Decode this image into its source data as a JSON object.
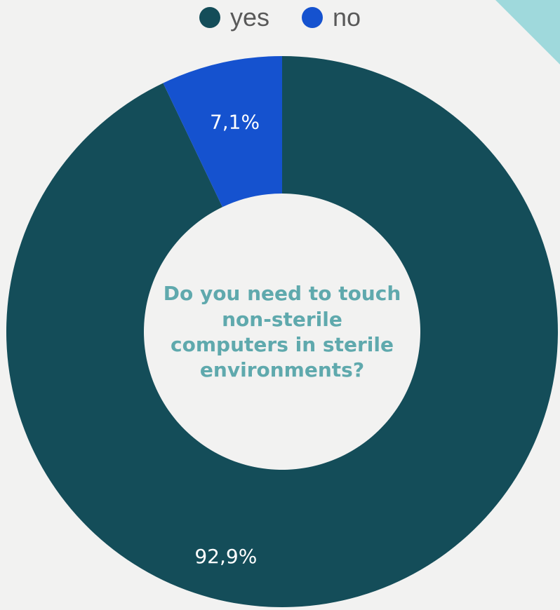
{
  "colors": {
    "background": "#f2f2f1",
    "accent": "#9fd9dc"
  },
  "legend": {
    "items": [
      {
        "label": "yes",
        "color": "#144d59"
      },
      {
        "label": "no",
        "color": "#1552cf"
      }
    ]
  },
  "center_text": "Do you need to touch non-sterile computers in sterile environments?",
  "chart_data": {
    "type": "pie",
    "donut": true,
    "categories": [
      "yes",
      "no"
    ],
    "values": [
      92.9,
      7.1
    ],
    "labels": [
      "92,9%",
      "7,1%"
    ],
    "colors": [
      "#144d59",
      "#1552cf"
    ],
    "legend_position": "top"
  }
}
